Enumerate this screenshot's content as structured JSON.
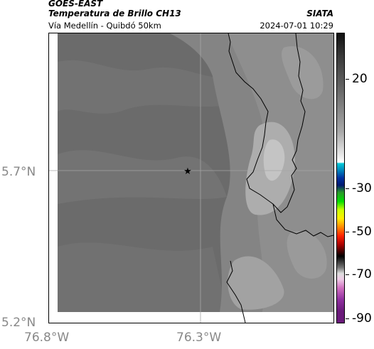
{
  "header": {
    "satellite": "GOES-EAST",
    "product": "Temperatura de Brillo CH13",
    "region": "Vía Medellín - Quibdó 50km",
    "organization": "SIATA",
    "timestamp": "2024-07-01 10:29"
  },
  "map": {
    "lat_ticks": [
      "5.7°N",
      "5.2°N"
    ],
    "lon_ticks": [
      "76.8°W",
      "76.3°W"
    ],
    "marker": "star-marker",
    "marker_symbol": "★"
  },
  "colorbar": {
    "tick_labels": [
      "20",
      "-30",
      "-50",
      "-70",
      "-90"
    ]
  },
  "colors": {
    "base_gray": "#6b6b6b",
    "land_gray": "#8a8a8a",
    "cloud_light": "#bdbdbd",
    "border": "#000000",
    "axis_label": "#888888"
  }
}
